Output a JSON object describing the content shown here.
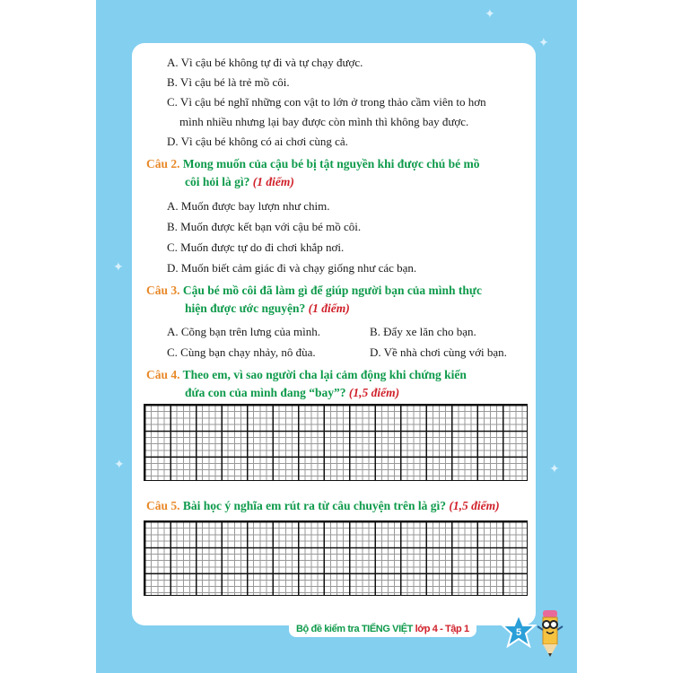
{
  "q1_options": [
    "A. Vì cậu bé không tự đi và tự chạy được.",
    "B. Vì cậu bé là trẻ mồ côi.",
    "C. Vì cậu bé nghĩ những con vật to lớn ở trong thảo cầm viên to hơn",
    "mình nhiều nhưng lại bay được còn mình thì không bay được.",
    "D. Vì cậu bé không có ai chơi cùng cả."
  ],
  "q2": {
    "num": "Câu 2.",
    "line1": "Mong muốn của cậu bé bị tật nguyền khi được chú bé mồ",
    "line2": "côi hỏi là gì?",
    "points": "(1 điểm)",
    "options": [
      "A. Muốn được bay lượn như chim.",
      "B. Muốn được kết bạn với cậu bé mồ côi.",
      "C. Muốn được tự do đi chơi khắp nơi.",
      "D. Muốn biết cảm giác đi và chạy giống như các bạn."
    ]
  },
  "q3": {
    "num": "Câu 3.",
    "line1": "Cậu bé mồ côi đã làm gì để giúp người bạn của mình thực",
    "line2": "hiện được ước nguyện?",
    "points": "(1 điểm)",
    "options": [
      "A. Cõng bạn trên lưng của mình.",
      "B. Đẩy xe lăn cho bạn.",
      "C. Cùng bạn chạy nhảy, nô đùa.",
      "D. Về nhà chơi cùng với bạn."
    ]
  },
  "q4": {
    "num": "Câu 4.",
    "line1": "Theo em, vì sao người cha lại cảm động khi chứng kiến",
    "line2": "đứa con của mình đang “bay”?",
    "points": "(1,5 điểm)"
  },
  "q5": {
    "num": "Câu 5.",
    "line1": "Bài học ý nghĩa em rút ra từ câu chuyện trên là gì?",
    "points": "(1,5 điểm)"
  },
  "footer": {
    "title": "Bộ đề kiểm tra TIẾNG VIỆT",
    "grade": "lớp 4 - Tập 1",
    "page": "5"
  },
  "colors": {
    "background": "#82cff0",
    "question_text": "#0e9a4b",
    "question_number": "#e8892a",
    "points": "#d0202a",
    "star": "#2a9fd8"
  }
}
